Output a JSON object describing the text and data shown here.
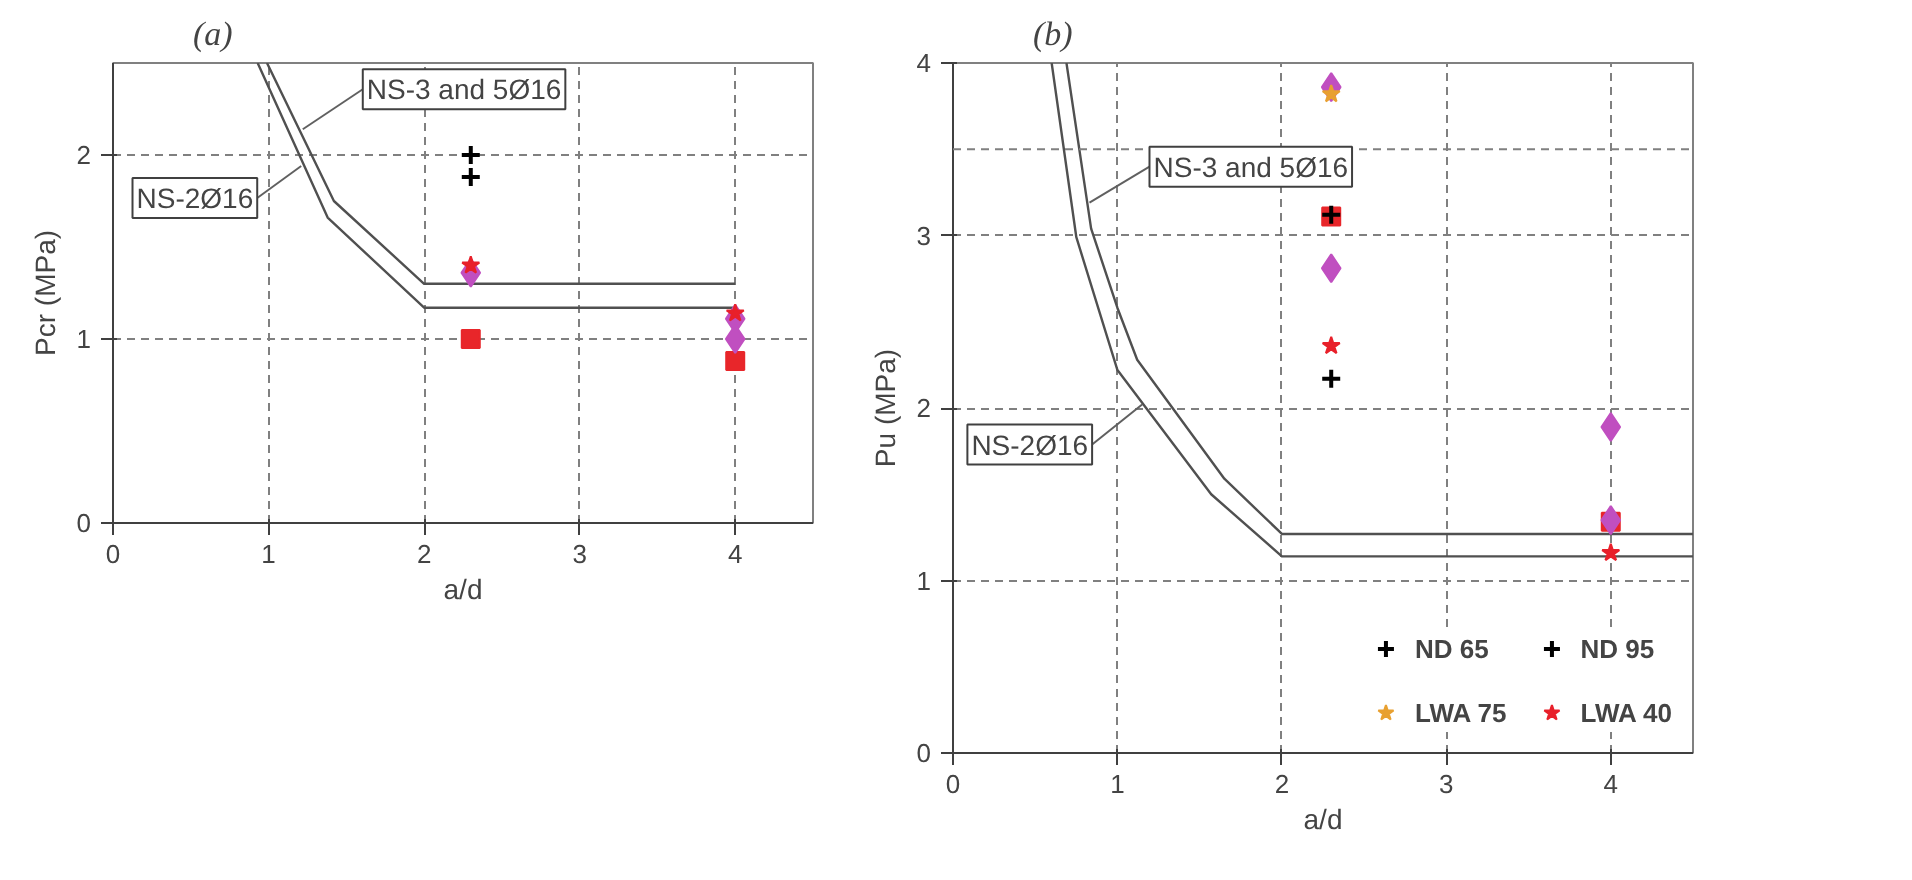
{
  "chart_data": [
    {
      "type": "scatter",
      "title": "(a)",
      "xlabel": "a/d",
      "ylabel": "Pcr (MPa)",
      "xlim": [
        0,
        4.5
      ],
      "ylim": [
        0,
        2.5
      ],
      "xticks": [
        0,
        1,
        2,
        3,
        4
      ],
      "yticks": [
        0,
        1,
        2
      ],
      "grid": true,
      "series": [
        {
          "type": "line",
          "color": "#505050",
          "x": [
            0.99,
            1.42,
            2.0,
            4.0
          ],
          "values": [
            2.5,
            1.75,
            1.3,
            1.3
          ]
        },
        {
          "type": "line",
          "color": "#505050",
          "x": [
            0.93,
            1.38,
            2.0,
            4.0
          ],
          "values": [
            2.5,
            1.66,
            1.17,
            1.17
          ]
        },
        {
          "color": "#e8262a",
          "marker": "square",
          "x": [
            2.3,
            4
          ],
          "values": [
            1.0,
            0.88
          ]
        },
        {
          "color": "#c04fc0",
          "marker": "diamond",
          "x": [
            2.3,
            4,
            4
          ],
          "values": [
            1.36,
            1.11,
            1.0
          ]
        },
        {
          "color": "#000000",
          "marker": "cross",
          "x": [
            2.3
          ],
          "values": [
            2.0
          ]
        },
        {
          "color": "#000000",
          "marker": "cross",
          "x": [
            2.3
          ],
          "values": [
            1.88
          ]
        },
        {
          "color": "#e8202a",
          "marker": "star",
          "x": [
            2.3,
            4
          ],
          "values": [
            1.4,
            1.14
          ]
        }
      ],
      "annotations": [
        {
          "text": "NS-3 and 5Ø16",
          "x": 1.22,
          "y": 2.14
        },
        {
          "text": "NS-2Ø16",
          "x": 1.21,
          "y": 1.94
        }
      ]
    },
    {
      "type": "scatter",
      "title": "(b)",
      "xlabel": "a/d",
      "ylabel": "Pu (MPa)",
      "xlim": [
        0,
        4.5
      ],
      "ylim": [
        0,
        4
      ],
      "xticks": [
        0,
        1,
        2,
        3,
        4
      ],
      "yticks": [
        0,
        1,
        2,
        3,
        4
      ],
      "grid": true,
      "legend": "bottom right",
      "ref_lines": [
        {
          "axis": "y",
          "value": 3.5,
          "line_style": "dashed",
          "color": "#808080"
        }
      ],
      "series": [
        {
          "type": "line",
          "color": "#505050",
          "x": [
            0.69,
            0.84,
            1.0,
            1.12,
            1.65,
            2.0,
            4.5
          ],
          "values": [
            4.0,
            3.04,
            2.58,
            2.28,
            1.59,
            1.27,
            1.27
          ]
        },
        {
          "type": "line",
          "color": "#505050",
          "x": [
            0.6,
            0.75,
            1.0,
            1.57,
            2.0,
            4.5
          ],
          "values": [
            4.0,
            2.99,
            2.22,
            1.5,
            1.14,
            1.14
          ]
        },
        {
          "color": "#e8262a",
          "marker": "square",
          "x": [
            2.3,
            4
          ],
          "values": [
            3.11,
            1.34
          ]
        },
        {
          "color": "#c04fc0",
          "marker": "diamond",
          "x": [
            2.3,
            2.3,
            4,
            4
          ],
          "values": [
            3.86,
            2.81,
            1.89,
            1.35
          ]
        },
        {
          "name": "ND 65",
          "color": "#000000",
          "marker": "cross",
          "x": [
            2.3
          ],
          "values": [
            3.12
          ]
        },
        {
          "name": "ND 95",
          "color": "#000000",
          "marker": "cross",
          "x": [
            2.3
          ],
          "values": [
            2.17
          ]
        },
        {
          "name": "LWA 75",
          "color": "#e8a030",
          "marker": "star",
          "x": [
            2.3
          ],
          "values": [
            3.82
          ]
        },
        {
          "name": "LWA 40",
          "color": "#e8202a",
          "marker": "star",
          "x": [
            2.3,
            4
          ],
          "values": [
            2.36,
            1.16
          ]
        }
      ],
      "annotations": [
        {
          "text": "NS-3 and 5Ø16",
          "x": 0.83,
          "y": 3.19
        },
        {
          "text": "NS-2Ø16",
          "x": 1.15,
          "y": 2.02
        }
      ]
    }
  ]
}
